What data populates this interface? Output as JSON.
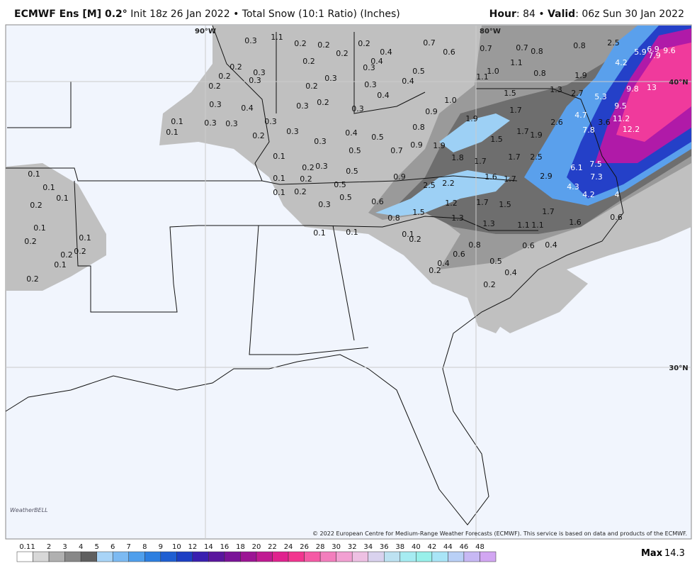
{
  "header": {
    "model": "ECMWF Ens [M] 0.2°",
    "subtitle": "Init 18z 26 Jan 2022 • Total Snow (10:1 Ratio) (Inches)",
    "hour_label": "Hour",
    "hour": "84",
    "valid_label": "Valid",
    "valid": "06z Sun 30 Jan 2022"
  },
  "map": {
    "grid_labels": [
      "90°W",
      "80°W",
      "40°N",
      "30°N"
    ],
    "values": [
      "0.3",
      "0.2",
      "0.2",
      "0.2",
      "0.2",
      "0.4",
      "0.4",
      "0.3",
      "0.2",
      "0.3",
      "0.2",
      "0.3",
      "0.4",
      "0.5",
      "0.7",
      "0.6",
      "0.7",
      "0.7",
      "0.8",
      "0.8",
      "2.5",
      "5.9",
      "6.9",
      "7.9",
      "9.6",
      "4.2",
      "1.9",
      "0.8",
      "1.1",
      "1.0",
      "1.1",
      "1.5",
      "1.3",
      "2.7",
      "5.3",
      "9.8",
      "13",
      "9.5",
      "11.2",
      "12.2",
      "3.6",
      "7.8",
      "4.7",
      "2.6",
      "1.7",
      "1.7",
      "1.9",
      "1.9",
      "1.0",
      "0.9",
      "0.4",
      "0.3",
      "0.2",
      "0.3",
      "0.3",
      "0.2",
      "0.2",
      "0.3",
      "0.4",
      "0.1",
      "0.1",
      "0.3",
      "0.3",
      "0.3",
      "0.2",
      "0.3",
      "0.2",
      "0.3",
      "0.3",
      "0.4",
      "0.5",
      "0.8",
      "0.9",
      "0.7",
      "0.5",
      "0.1",
      "0.2",
      "0.3",
      "0.5",
      "0.1",
      "0.2",
      "0.5",
      "0.1",
      "0.2",
      "0.5",
      "0.3",
      "0.9",
      "1.9",
      "1.8",
      "1.7",
      "1.5",
      "1.7",
      "2.5",
      "1.6",
      "1.7",
      "2.9",
      "6.1",
      "7.5",
      "7.3",
      "4.3",
      "4.2",
      "4",
      "2.5",
      "2.2",
      "1.2",
      "1.7",
      "1.5",
      "0.6",
      "1.5",
      "0.8",
      "1.3",
      "1.3",
      "1.1",
      "1.1",
      "1.7",
      "1.6",
      "0.6",
      "0.1",
      "0.2",
      "0.8",
      "0.6",
      "0.4",
      "0.6",
      "0.4",
      "0.5",
      "0.2",
      "0.4",
      "0.2",
      "0.1",
      "0.1",
      "0.1",
      "0.1",
      "0.1",
      "0.2",
      "0.1",
      "0.1",
      "0.2",
      "0.2",
      "0.2",
      "0.1",
      "0.2",
      "1.1"
    ]
  },
  "credit": "© 2022 European Centre for Medium-Range Weather Forecasts (ECMWF). This service is based on data and products of the ECMWF.",
  "logo": "WeatherBELL",
  "legend": {
    "ticks": [
      "0.1",
      "1",
      "2",
      "3",
      "4",
      "5",
      "6",
      "7",
      "8",
      "9",
      "10",
      "12",
      "14",
      "16",
      "18",
      "20",
      "22",
      "24",
      "26",
      "28",
      "30",
      "32",
      "34",
      "36",
      "38",
      "40",
      "42",
      "44",
      "46",
      "48"
    ],
    "max_label": "Max",
    "max": "14.3"
  }
}
